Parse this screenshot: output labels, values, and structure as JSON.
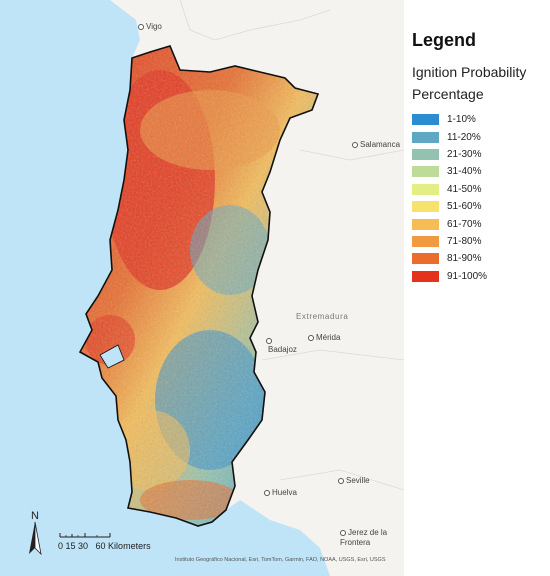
{
  "legend": {
    "title": "Legend",
    "subtitle_line1": "Ignition Probability",
    "subtitle_line2": "Percentage",
    "items": [
      {
        "label": "1-10%",
        "color": "#2b8cd2"
      },
      {
        "label": "11-20%",
        "color": "#5ea8c4"
      },
      {
        "label": "21-30%",
        "color": "#93c3b0"
      },
      {
        "label": "31-40%",
        "color": "#bddc9a"
      },
      {
        "label": "41-50%",
        "color": "#e3ef86"
      },
      {
        "label": "51-60%",
        "color": "#f6e36e"
      },
      {
        "label": "61-70%",
        "color": "#f6bd57"
      },
      {
        "label": "71-80%",
        "color": "#f09a42"
      },
      {
        "label": "81-90%",
        "color": "#ea6d2c"
      },
      {
        "label": "91-100%",
        "color": "#e5321c"
      }
    ]
  },
  "places": {
    "vigo": "Vigo",
    "salamanca": "Salamanca",
    "badajoz": "Badajoz",
    "merida": "Mérida",
    "seville": "Seville",
    "huelva": "Huelva",
    "jerez_line1": "Jerez de la",
    "jerez_line2": "Frontera",
    "extremadura": "Extremadura"
  },
  "scale_bar": {
    "labels": "0 15 30",
    "end_label": "60 Kilometers"
  },
  "north_arrow": "N",
  "credits": "Instituto Geográfico Nacional, Esri, TomTom, Garmin, FAO, NOAA, USGS, Esri, USGS",
  "colors": {
    "sea": "#bfe3f7",
    "land": "#f4f3ef",
    "border": "#111111"
  }
}
